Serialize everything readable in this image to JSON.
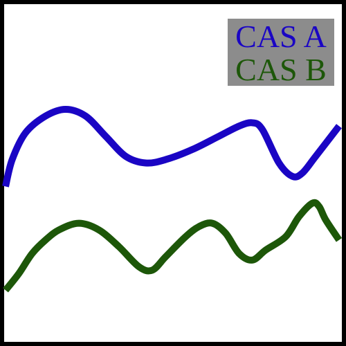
{
  "chart_data": {
    "type": "line",
    "title": "",
    "xlabel": "",
    "ylabel": "",
    "grid": false,
    "axes_visible": false,
    "legend_position": "top-right",
    "legend_background": "#8c8c8c",
    "background": "#ffffff",
    "border_color": "#000000",
    "xlim": [
      0,
      1
    ],
    "ylim": [
      0,
      1
    ],
    "series": [
      {
        "name": "CAS A",
        "color": "#1a05c4",
        "points": [
          [
            0.0,
            0.46
          ],
          [
            0.02,
            0.54
          ],
          [
            0.06,
            0.62
          ],
          [
            0.12,
            0.67
          ],
          [
            0.18,
            0.69
          ],
          [
            0.24,
            0.67
          ],
          [
            0.3,
            0.61
          ],
          [
            0.36,
            0.55
          ],
          [
            0.42,
            0.53
          ],
          [
            0.48,
            0.54
          ],
          [
            0.56,
            0.57
          ],
          [
            0.64,
            0.61
          ],
          [
            0.7,
            0.64
          ],
          [
            0.74,
            0.65
          ],
          [
            0.77,
            0.63
          ],
          [
            0.82,
            0.53
          ],
          [
            0.86,
            0.49
          ],
          [
            0.89,
            0.5
          ],
          [
            0.93,
            0.55
          ],
          [
            1.0,
            0.64
          ]
        ]
      },
      {
        "name": "CAS B",
        "color": "#1d5709",
        "points": [
          [
            0.0,
            0.15
          ],
          [
            0.04,
            0.2
          ],
          [
            0.08,
            0.26
          ],
          [
            0.12,
            0.3
          ],
          [
            0.16,
            0.33
          ],
          [
            0.22,
            0.35
          ],
          [
            0.28,
            0.33
          ],
          [
            0.34,
            0.28
          ],
          [
            0.4,
            0.22
          ],
          [
            0.44,
            0.21
          ],
          [
            0.48,
            0.25
          ],
          [
            0.54,
            0.31
          ],
          [
            0.58,
            0.34
          ],
          [
            0.62,
            0.35
          ],
          [
            0.66,
            0.32
          ],
          [
            0.7,
            0.26
          ],
          [
            0.74,
            0.24
          ],
          [
            0.78,
            0.27
          ],
          [
            0.84,
            0.31
          ],
          [
            0.88,
            0.37
          ],
          [
            0.92,
            0.41
          ],
          [
            0.94,
            0.4
          ],
          [
            0.96,
            0.36
          ],
          [
            1.0,
            0.3
          ]
        ]
      }
    ]
  }
}
